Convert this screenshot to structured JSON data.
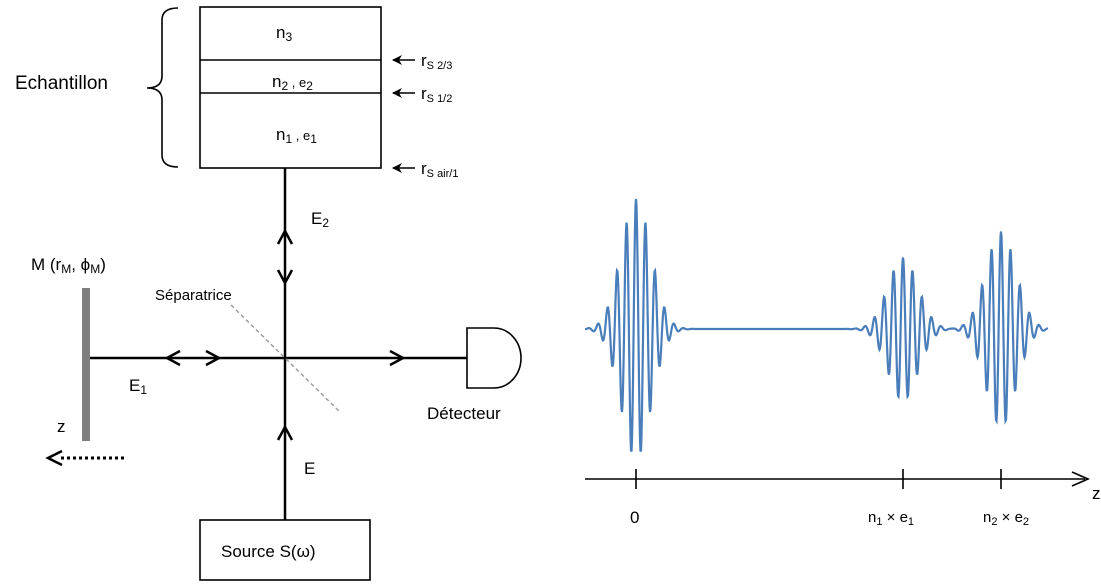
{
  "sample": {
    "label": "Echantillon",
    "layers": [
      {
        "n": "n",
        "sub": "3",
        "thickness": ""
      },
      {
        "n": "n",
        "sub": "2",
        "thickness_prefix": " , e",
        "thickness_sub": "2"
      },
      {
        "n": "n",
        "sub": "1",
        "thickness_prefix": " , e",
        "thickness_sub": "1"
      }
    ],
    "interfaces": [
      {
        "r": "r",
        "sub": "S 2/3"
      },
      {
        "r": "r",
        "sub": "S 1/2"
      },
      {
        "r": "r",
        "sub": "S air/1"
      }
    ]
  },
  "fields": {
    "E2": {
      "main": "E",
      "sub": "2"
    },
    "E1": {
      "main": "E",
      "sub": "1"
    },
    "E": {
      "main": "E"
    }
  },
  "mirror": {
    "label_pre": "M (r",
    "r_sub": "M",
    "mid": ", ϕ",
    "phi_sub": "M",
    "post": ")"
  },
  "splitter_label": "Séparatrice",
  "detector_label": "Détecteur",
  "source_label": "Source  S(ω)",
  "z_label_left": "z",
  "signal_axis": {
    "z_label": "z",
    "ticks": [
      {
        "main": "0"
      },
      {
        "main": "n",
        "sub1": "1",
        "mid": " × e",
        "sub2": "1"
      },
      {
        "main": "n",
        "sub1": "2",
        "mid": " × e",
        "sub2": "2"
      }
    ]
  },
  "chart_data": {
    "type": "line",
    "title": "",
    "xlabel": "z",
    "ylabel": "",
    "series": [
      {
        "values": [
          {
            "x": "0",
            "peak_amplitude": 1.0
          },
          {
            "x": "n1 × e1",
            "peak_amplitude": 0.55
          },
          {
            "x": "n2 × e2",
            "peak_amplitude": 0.75
          }
        ]
      }
    ],
    "grid": false,
    "color": "#4a7ebb"
  }
}
